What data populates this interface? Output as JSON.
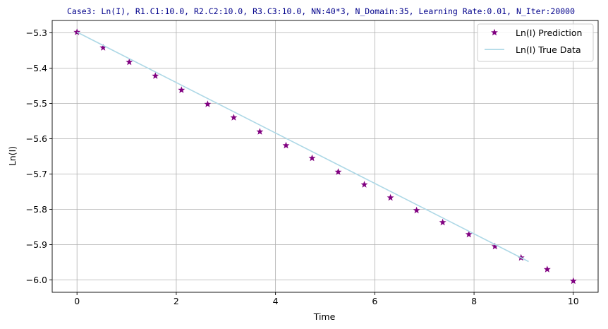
{
  "chart_data": {
    "type": "scatter",
    "title": "Case3: Ln(I), R1.C1:10.0, R2.C2:10.0, R3.C3:10.0, NN:40*3, N_Domain:35, Learning Rate:0.01, N_Iter:20000",
    "xlabel": "Time",
    "ylabel": "Ln(I)",
    "xlim": [
      -0.5,
      10.5
    ],
    "ylim": [
      -6.035,
      -5.265
    ],
    "xticks": [
      0,
      2,
      4,
      6,
      8,
      10
    ],
    "xtick_labels": [
      "0",
      "2",
      "4",
      "6",
      "8",
      "10"
    ],
    "yticks": [
      -5.3,
      -5.4,
      -5.5,
      -5.6,
      -5.7,
      -5.8,
      -5.9,
      -6.0
    ],
    "ytick_labels": [
      "−5.3",
      "−5.4",
      "−5.5",
      "−5.6",
      "−5.7",
      "−5.8",
      "−5.9",
      "−6.0"
    ],
    "grid": true,
    "legend_position": "top-right",
    "series": [
      {
        "name": "Ln(I) Prediction",
        "kind": "scatter",
        "marker": "star",
        "color": "#800080",
        "x": [
          0.0,
          0.526,
          1.053,
          1.579,
          2.105,
          2.632,
          3.158,
          3.684,
          4.211,
          4.737,
          5.263,
          5.789,
          6.316,
          6.842,
          7.368,
          7.895,
          8.421,
          8.947,
          9.474,
          10.0
        ],
        "y": [
          -5.298,
          -5.342,
          -5.383,
          -5.422,
          -5.462,
          -5.502,
          -5.54,
          -5.58,
          -5.619,
          -5.655,
          -5.694,
          -5.73,
          -5.767,
          -5.803,
          -5.837,
          -5.871,
          -5.905,
          -5.937,
          -5.97,
          -6.003
        ]
      },
      {
        "name": "Ln(I) True Data",
        "kind": "line",
        "color": "#add8e6",
        "x": [
          0.0,
          9.1
        ],
        "y": [
          -5.298,
          -5.948
        ]
      }
    ]
  }
}
